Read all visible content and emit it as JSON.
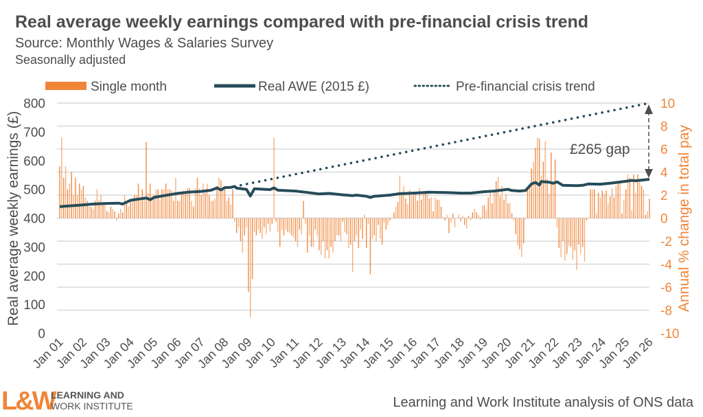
{
  "header": {
    "title": "Real average weekly earnings compared with pre-financial crisis trend",
    "source": "Source: Monthly Wages & Salaries Survey",
    "note": "Seasonally adjusted"
  },
  "footer": {
    "credit": "Learning and Work Institute analysis of ONS data",
    "logo_mark": "L&W",
    "logo_line1": "LEARNING AND",
    "logo_line2": "WORK INSTITUTE"
  },
  "colors": {
    "bars": "#F08538",
    "line": "#264B59",
    "text": "#4D4D4D",
    "right_axis": "#F08538",
    "grid": "#D9D9D9"
  },
  "chart_data": {
    "type": "bar+line",
    "title": "Real average weekly earnings compared with pre-financial crisis trend",
    "legend_placement": "top",
    "grid": true,
    "legend": [
      "Single month",
      "Real AWE (2015 £)",
      "Pre-financial crisis trend"
    ],
    "x_ticks": [
      "Jan 01",
      "Jan 02",
      "Jan 03",
      "Jan 04",
      "Jan 05",
      "Jan 06",
      "Jan 07",
      "Jan 08",
      "Jan 09",
      "Jan 10",
      "Jan 11",
      "Jan 12",
      "Jan 13",
      "Jan 14",
      "Jan 15",
      "Jan 16",
      "Jan 17",
      "Jan 18",
      "Jan 19",
      "Jan 20",
      "Jan 21",
      "Jan 22",
      "Jan 23",
      "Jan 24",
      "Jan 25",
      "Jan 26"
    ],
    "y_left": {
      "label": "Real average weekly earnings (£)",
      "range": [
        0,
        800
      ],
      "ticks": [
        "800",
        "700",
        "600",
        "500",
        "400",
        "300",
        "200",
        "100",
        "0"
      ]
    },
    "y_right": {
      "label": "Annual % change in total pay",
      "range": [
        -10,
        10
      ],
      "ticks": [
        "10",
        "8",
        "6",
        "4",
        "2",
        "0",
        "-2",
        "-4",
        "-6",
        "-8",
        "-10"
      ]
    },
    "annotation": "£265 gap",
    "single_month": {
      "name": "Single month",
      "axis": "right",
      "start": "2001-01",
      "frequency": "monthly",
      "values": [
        4.5,
        7,
        3.5,
        4.5,
        2.5,
        3,
        4,
        2,
        3.5,
        2,
        3,
        2.5,
        2.8,
        1.8,
        1.5,
        1,
        1,
        0.8,
        1.5,
        2.5,
        1.5,
        2,
        1.2,
        1.2,
        0.6,
        0.5,
        1,
        0.8,
        0.6,
        -0.2,
        0.4,
        0.8,
        0.5,
        2,
        1.5,
        1,
        1.5,
        1.6,
        2,
        2,
        3,
        1.5,
        2.5,
        1.8,
        6.6,
        2.2,
        3,
        1.8,
        2,
        2.5,
        2.5,
        1.6,
        2.5,
        2.5,
        3,
        2.5,
        2.5,
        2.4,
        1.5,
        3.5,
        1.5,
        1.5,
        2.2,
        2.4,
        2.2,
        2.6,
        2.6,
        1.5,
        1,
        2.6,
        3.5,
        2.6,
        2,
        3,
        2.2,
        3,
        2,
        1.5,
        1.5,
        1.7,
        2.8,
        3.5,
        3.3,
        2.5,
        2.5,
        1.5,
        1.8,
        1.2,
        2.5,
        -0.3,
        -1.3,
        -0.8,
        -2,
        -3,
        -1.5,
        -0.8,
        -6.4,
        -8.6,
        -5.3,
        -1.2,
        -1.5,
        -1,
        -1.3,
        -1.8,
        -0.8,
        -1.4,
        -0.5,
        -1.2,
        -0.5,
        7,
        -0.3,
        -1.2,
        -2.5,
        -1,
        -1.5,
        -1,
        -1.2,
        -1.3,
        -1.5,
        -1.7,
        -2,
        -2.5,
        -1,
        -1.4,
        1.5,
        -0.5,
        -3,
        -1.5,
        -2.5,
        -2.5,
        -1,
        -1.5,
        -2.8,
        -3.2,
        -2,
        -3.5,
        -2.8,
        -3.5,
        -2.5,
        -3,
        -2,
        -1.5,
        -1.5,
        -2,
        -0.3,
        -1.2,
        -1.4,
        -2.6,
        -2.3,
        -4.7,
        -2,
        -1.5,
        -2.6,
        -1,
        -1.8,
        0.3,
        -2.6,
        -0.5,
        -4.9,
        -1.8,
        -1.5,
        -2,
        -0.6,
        -1.8,
        -2.3,
        -0.4,
        -1,
        -0.6,
        -0.2,
        0,
        0.5,
        1,
        1.4,
        3.7,
        2.2,
        2.8,
        1.7,
        1.2,
        2.4,
        1.9,
        2,
        2.1,
        1.5,
        2.6,
        1.6,
        2.1,
        2.2,
        2.3,
        1.7,
        1.8,
        0.6,
        1.8,
        1.6,
        1.6,
        1,
        0.1,
        -0.2,
        0.3,
        -1.3,
        -0.4,
        0.4,
        -0.8,
        0,
        0.3,
        -0.3,
        0.2,
        -0.6,
        -0.9,
        0.2,
        -0.2,
        0.5,
        0.8,
        0.5,
        0.3,
        -0.1,
        1.1,
        1.1,
        0.7,
        1.8,
        2.2,
        1.3,
        2.3,
        3.2,
        3.6,
        1.9,
        2.8,
        1.6,
        2.1,
        1.3,
        1.3,
        0.4,
        -0.2,
        -1.4,
        -2.4,
        -2.7,
        -3.4,
        -2.2,
        -0.1,
        2.6,
        2.9,
        4.3,
        4.9,
        6.1,
        7,
        6.9,
        3.7,
        4.9,
        6.7,
        3.4,
        2.1,
        5.7,
        3.2,
        5.1,
        -0.8,
        -2.6,
        -3.4,
        -2,
        -3.7,
        -3.1,
        -2.4,
        -2.5,
        -3.6,
        -2.8,
        -4.5,
        -2.3,
        -3.1,
        -2.5,
        -3.8,
        -0.2,
        0,
        2.5,
        2.5,
        2.5,
        0.4,
        2.2,
        1.8,
        2.4,
        2.1,
        2.4,
        1.3,
        1.9,
        2.6,
        1.8,
        2.8,
        3.1,
        3.2,
        0.4,
        1.6,
        2.5,
        3.8,
        3.5,
        0.7,
        3.8,
        2.2,
        3.8,
        3.4,
        2.8,
        2.5,
        0.3,
        0.6,
        1.7
      ]
    },
    "real_awe": {
      "name": "Real AWE (2015 £)",
      "axis": "left",
      "points": [
        [
          "2001-01",
          440
        ],
        [
          "2002-01",
          446
        ],
        [
          "2002-06",
          449
        ],
        [
          "2003-01",
          451
        ],
        [
          "2003-07",
          452
        ],
        [
          "2003-09",
          449
        ],
        [
          "2004-01",
          462
        ],
        [
          "2004-09",
          470
        ],
        [
          "2004-11",
          464
        ],
        [
          "2005-01",
          472
        ],
        [
          "2005-06",
          478
        ],
        [
          "2006-01",
          486
        ],
        [
          "2006-06",
          490
        ],
        [
          "2007-01",
          493
        ],
        [
          "2007-06",
          497
        ],
        [
          "2007-09",
          505
        ],
        [
          "2007-11",
          498
        ],
        [
          "2008-01",
          506
        ],
        [
          "2008-04",
          507
        ],
        [
          "2008-06",
          510
        ],
        [
          "2008-07",
          504
        ],
        [
          "2008-12",
          500
        ],
        [
          "2009-02",
          477
        ],
        [
          "2009-04",
          502
        ],
        [
          "2009-12",
          499
        ],
        [
          "2010-02",
          505
        ],
        [
          "2010-04",
          497
        ],
        [
          "2011-01",
          494
        ],
        [
          "2011-06",
          490
        ],
        [
          "2012-01",
          484
        ],
        [
          "2012-06",
          486
        ],
        [
          "2013-01",
          481
        ],
        [
          "2013-06",
          478
        ],
        [
          "2013-08",
          480
        ],
        [
          "2014-01",
          476
        ],
        [
          "2014-03",
          472
        ],
        [
          "2014-05",
          476
        ],
        [
          "2015-01",
          480
        ],
        [
          "2015-06",
          485
        ],
        [
          "2016-01",
          487
        ],
        [
          "2016-09",
          490
        ],
        [
          "2017-06",
          489
        ],
        [
          "2018-01",
          487
        ],
        [
          "2018-06",
          487
        ],
        [
          "2019-01",
          492
        ],
        [
          "2019-06",
          494
        ],
        [
          "2020-01",
          500
        ],
        [
          "2020-03",
          496
        ],
        [
          "2020-07",
          494
        ],
        [
          "2020-10",
          496
        ],
        [
          "2021-01",
          519
        ],
        [
          "2021-03",
          524
        ],
        [
          "2021-05",
          515
        ],
        [
          "2021-06",
          527
        ],
        [
          "2021-10",
          525
        ],
        [
          "2021-12",
          521
        ],
        [
          "2022-02",
          526
        ],
        [
          "2022-05",
          514
        ],
        [
          "2022-12",
          513
        ],
        [
          "2023-03",
          514
        ],
        [
          "2023-06",
          519
        ],
        [
          "2023-12",
          518
        ],
        [
          "2024-06",
          522
        ],
        [
          "2025-01",
          528
        ],
        [
          "2025-04",
          531
        ],
        [
          "2025-06",
          530
        ],
        [
          "2026-01",
          535
        ]
      ]
    },
    "trend": {
      "name": "Pre-financial crisis trend",
      "axis": "left",
      "points": [
        [
          "2008-06",
          510
        ],
        [
          "2026-01",
          800
        ]
      ]
    }
  }
}
